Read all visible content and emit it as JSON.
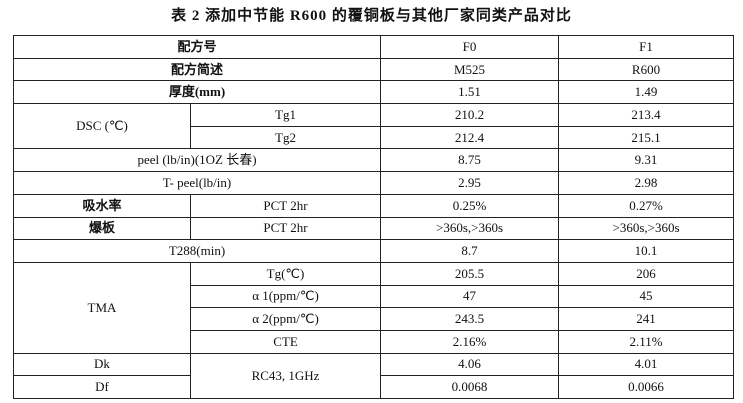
{
  "title": "表 2 添加中节能 R600 的覆铜板与其他厂家同类产品对比",
  "table": {
    "header": [
      "配方号",
      "F0",
      "F1"
    ],
    "rows": [
      [
        "配方简述",
        "M525",
        "R600"
      ],
      [
        "厚度(mm)",
        "1.51",
        "1.49"
      ],
      [
        "DSC (℃)",
        "Tg1",
        "210.2",
        "213.4"
      ],
      [
        "Tg2",
        "212.4",
        "215.1"
      ],
      [
        "peel (lb/in)(1OZ 长春)",
        "8.75",
        "9.31"
      ],
      [
        "T- peel(lb/in)",
        "2.95",
        "2.98"
      ],
      [
        "吸水率",
        "PCT 2hr",
        "0.25%",
        "0.27%"
      ],
      [
        "爆板",
        "PCT 2hr",
        ">360s,>360s",
        ">360s,>360s"
      ],
      [
        "T288(min)",
        "8.7",
        "10.1"
      ],
      [
        "TMA",
        "Tg(℃)",
        "205.5",
        "206"
      ],
      [
        "α 1(ppm/℃)",
        "47",
        "45"
      ],
      [
        "α 2(ppm/℃)",
        "243.5",
        "241"
      ],
      [
        "CTE",
        "2.16%",
        "2.11%"
      ],
      [
        "Dk",
        "RC43, 1GHz",
        "4.06",
        "4.01"
      ],
      [
        "Df",
        "0.0068",
        "0.0066"
      ]
    ]
  }
}
